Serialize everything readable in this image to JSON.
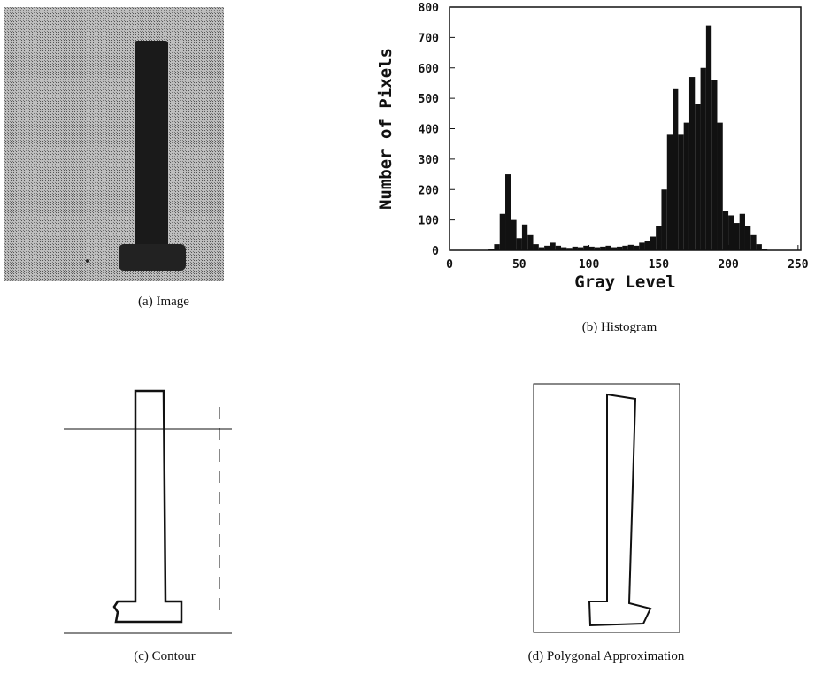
{
  "panels": [
    {
      "caption": "(a) Image"
    },
    {
      "caption": "(b) Histogram"
    },
    {
      "caption": "(c) Contour"
    },
    {
      "caption": "(d) Polygonal Approximation"
    }
  ],
  "chart_data": {
    "type": "histogram",
    "x_label": "Gray Level",
    "y_label": "Number of Pixels",
    "color": "#111111",
    "bins": [
      28,
      32,
      36,
      40,
      44,
      48,
      52,
      56,
      60,
      64,
      68,
      72,
      76,
      80,
      84,
      88,
      92,
      96,
      100,
      104,
      108,
      112,
      116,
      120,
      124,
      128,
      132,
      136,
      140,
      144,
      148,
      152,
      156,
      160,
      164,
      168,
      172,
      176,
      180,
      184,
      188,
      192,
      196,
      200,
      204,
      208,
      212,
      216,
      220,
      224,
      228
    ],
    "values": [
      5,
      20,
      120,
      250,
      100,
      40,
      85,
      50,
      20,
      10,
      15,
      25,
      15,
      10,
      8,
      12,
      10,
      15,
      12,
      10,
      12,
      15,
      10,
      12,
      15,
      18,
      15,
      25,
      30,
      45,
      80,
      200,
      380,
      530,
      380,
      420,
      570,
      480,
      600,
      740,
      560,
      420,
      130,
      115,
      90,
      120,
      80,
      50,
      20,
      5
    ],
    "xlim": [
      0,
      252
    ],
    "ylim": [
      0,
      800
    ],
    "xticks": [
      0,
      50,
      100,
      150,
      200,
      250
    ],
    "yticks": [
      0,
      100,
      200,
      300,
      400,
      500,
      600,
      700,
      800
    ]
  }
}
